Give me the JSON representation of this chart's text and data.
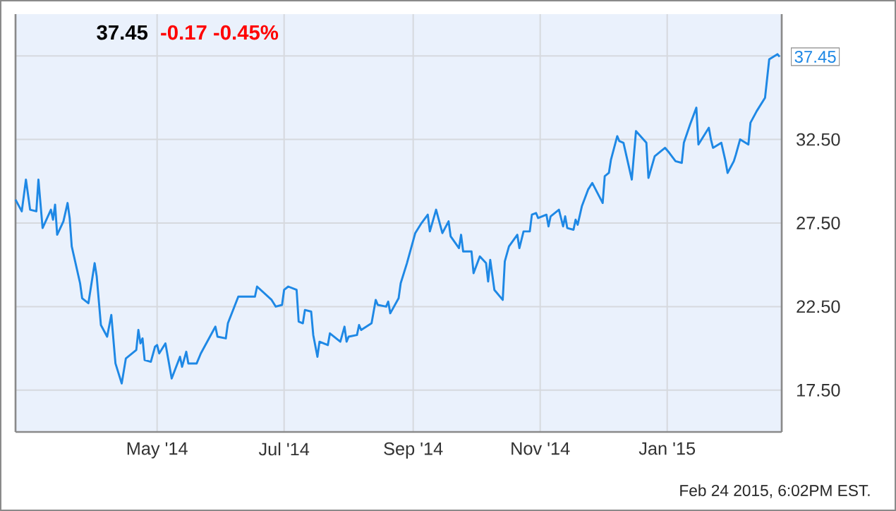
{
  "chart_data": {
    "type": "line",
    "title": "37.45",
    "subtitle": "-0.17  -0.45%",
    "x": [
      "2014-02-22",
      "2014-02-25",
      "2014-02-27",
      "2014-03-01",
      "2014-03-04",
      "2014-03-05",
      "2014-03-07",
      "2014-03-11",
      "2014-03-12",
      "2014-03-13",
      "2014-03-14",
      "2014-03-17",
      "2014-03-19",
      "2014-03-20",
      "2014-03-21",
      "2014-03-25",
      "2014-03-26",
      "2014-03-29",
      "2014-04-01",
      "2014-04-02",
      "2014-04-04",
      "2014-04-07",
      "2014-04-09",
      "2014-04-11",
      "2014-04-14",
      "2014-04-16",
      "2014-04-21",
      "2014-04-22",
      "2014-04-23",
      "2014-04-24",
      "2014-04-25",
      "2014-04-28",
      "2014-04-30",
      "2014-05-01",
      "2014-05-02",
      "2014-05-05",
      "2014-05-08",
      "2014-05-12",
      "2014-05-13",
      "2014-05-15",
      "2014-05-16",
      "2014-05-20",
      "2014-05-22",
      "2014-05-29",
      "2014-05-30",
      "2014-06-03",
      "2014-06-04",
      "2014-06-09",
      "2014-06-12",
      "2014-06-17",
      "2014-06-18",
      "2014-06-25",
      "2014-06-27",
      "2014-06-30",
      "2014-07-01",
      "2014-07-03",
      "2014-07-07",
      "2014-07-08",
      "2014-07-10",
      "2014-07-11",
      "2014-07-14",
      "2014-07-15",
      "2014-07-17",
      "2014-07-18",
      "2014-07-22",
      "2014-07-23",
      "2014-07-28",
      "2014-07-30",
      "2014-07-31",
      "2014-08-01",
      "2014-08-05",
      "2014-08-06",
      "2014-08-07",
      "2014-08-12",
      "2014-08-14",
      "2014-08-15",
      "2014-08-19",
      "2014-08-20",
      "2014-08-21",
      "2014-08-25",
      "2014-08-26",
      "2014-08-29",
      "2014-09-02",
      "2014-09-05",
      "2014-09-08",
      "2014-09-09",
      "2014-09-12",
      "2014-09-15",
      "2014-09-18",
      "2014-09-19",
      "2014-09-23",
      "2014-09-24",
      "2014-09-25",
      "2014-09-29",
      "2014-09-30",
      "2014-10-03",
      "2014-10-06",
      "2014-10-07",
      "2014-10-08",
      "2014-10-10",
      "2014-10-14",
      "2014-10-15",
      "2014-10-17",
      "2014-10-21",
      "2014-10-22",
      "2014-10-24",
      "2014-10-27",
      "2014-10-28",
      "2014-10-30",
      "2014-10-31",
      "2014-11-04",
      "2014-11-05",
      "2014-11-06",
      "2014-11-10",
      "2014-11-12",
      "2014-11-13",
      "2014-11-14",
      "2014-11-17",
      "2014-11-18",
      "2014-11-19",
      "2014-11-21",
      "2014-11-24",
      "2014-11-26",
      "2014-12-01",
      "2014-12-02",
      "2014-12-04",
      "2014-12-05",
      "2014-12-08",
      "2014-12-09",
      "2014-12-11",
      "2014-12-15",
      "2014-12-17",
      "2014-12-22",
      "2014-12-23",
      "2014-12-26",
      "2014-12-29",
      "2014-12-31",
      "2015-01-02",
      "2015-01-05",
      "2015-01-08",
      "2015-01-09",
      "2015-01-12",
      "2015-01-15",
      "2015-01-16",
      "2015-01-21",
      "2015-01-22",
      "2015-01-23",
      "2015-01-27",
      "2015-01-29",
      "2015-01-30",
      "2015-02-02",
      "2015-02-03",
      "2015-02-05",
      "2015-02-09",
      "2015-02-10",
      "2015-02-13",
      "2015-02-17",
      "2015-02-19",
      "2015-02-23",
      "2015-02-24"
    ],
    "values": [
      28.9,
      28.2,
      30.1,
      28.3,
      28.2,
      30.1,
      27.2,
      28.3,
      27.7,
      28.6,
      26.8,
      27.6,
      28.7,
      27.8,
      26.1,
      23.9,
      23.0,
      22.7,
      25.1,
      24.3,
      21.4,
      20.7,
      22.0,
      19.1,
      17.9,
      19.4,
      19.9,
      21.1,
      20.3,
      20.6,
      19.3,
      19.2,
      20.1,
      20.2,
      19.7,
      20.3,
      18.2,
      19.5,
      18.9,
      19.8,
      19.1,
      19.1,
      19.7,
      21.3,
      20.7,
      20.6,
      21.5,
      23.1,
      23.1,
      23.1,
      23.7,
      22.9,
      22.5,
      22.6,
      23.5,
      23.7,
      23.5,
      21.6,
      21.5,
      22.3,
      22.2,
      20.8,
      19.5,
      20.4,
      20.2,
      20.9,
      20.4,
      21.3,
      20.4,
      20.7,
      20.8,
      21.4,
      21.1,
      21.5,
      22.9,
      22.6,
      22.5,
      22.8,
      22.1,
      23.0,
      23.9,
      25.1,
      26.9,
      27.5,
      28.0,
      27.0,
      28.3,
      26.9,
      27.6,
      26.7,
      26.0,
      26.8,
      25.8,
      25.8,
      24.5,
      25.5,
      25.1,
      24.0,
      25.3,
      23.5,
      22.9,
      25.2,
      26.1,
      26.8,
      26.0,
      27.0,
      27.0,
      28.0,
      28.1,
      27.8,
      28.0,
      27.3,
      27.9,
      28.3,
      27.3,
      27.9,
      27.2,
      27.1,
      27.7,
      27.4,
      28.5,
      29.5,
      29.9,
      28.7,
      30.3,
      30.5,
      31.3,
      32.7,
      32.4,
      32.3,
      30.1,
      33.0,
      32.3,
      30.2,
      31.5,
      31.8,
      32.0,
      31.7,
      31.2,
      31.1,
      32.3,
      33.4,
      34.4,
      32.2,
      33.2,
      32.5,
      32.0,
      32.3,
      31.2,
      30.5,
      31.2,
      31.6,
      32.5,
      32.2,
      33.5,
      34.2,
      35.0,
      37.3,
      37.6,
      37.45
    ],
    "color": "#1e88e5",
    "xlim": [
      "2014-02-22",
      "2015-02-25"
    ],
    "xticks": [
      {
        "value": "2014-05-01",
        "label": "May '14"
      },
      {
        "value": "2014-07-01",
        "label": "Jul '14"
      },
      {
        "value": "2014-09-01",
        "label": "Sep '14"
      },
      {
        "value": "2014-11-01",
        "label": "Nov '14"
      },
      {
        "value": "2015-01-01",
        "label": "Jan '15"
      }
    ],
    "ylim": [
      15,
      40
    ],
    "yticks": [
      {
        "value": 17.5,
        "label": "17.50"
      },
      {
        "value": 22.5,
        "label": "22.50"
      },
      {
        "value": 27.5,
        "label": "27.50"
      },
      {
        "value": 32.5,
        "label": "32.50"
      },
      {
        "value": 37.5,
        "label": null
      }
    ],
    "grid": true,
    "annotations": [
      {
        "text": "37.45",
        "x": "2015-02-24",
        "y": 37.45
      },
      "Feb 24 2015, 6:02PM EST."
    ]
  }
}
